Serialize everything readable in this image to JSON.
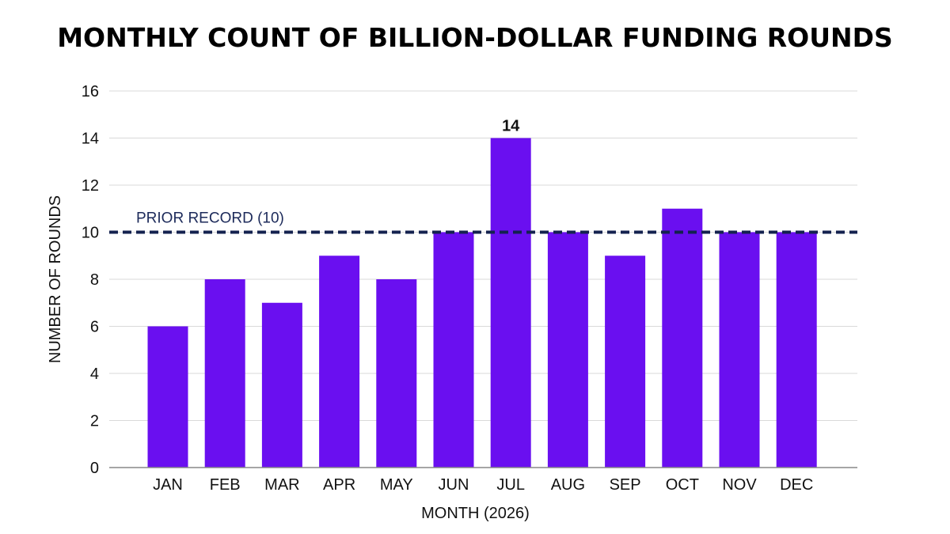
{
  "chart_data": {
    "type": "bar",
    "title": "MONTHLY COUNT OF BILLION-DOLLAR FUNDING ROUNDS",
    "xlabel": "MONTH (2026)",
    "ylabel": "NUMBER OF ROUNDS",
    "categories": [
      "JAN",
      "FEB",
      "MAR",
      "APR",
      "MAY",
      "JUN",
      "JUL",
      "AUG",
      "SEP",
      "OCT",
      "NOV",
      "DEC"
    ],
    "values": [
      6,
      8,
      7,
      9,
      8,
      10,
      14,
      10,
      9,
      11,
      10,
      10
    ],
    "ylim": [
      0,
      16
    ],
    "yticks": [
      0,
      2,
      4,
      6,
      8,
      10,
      12,
      14,
      16
    ],
    "grid": true,
    "bar_color": "#6a0ff0",
    "data_labels": [
      {
        "category": "JUL",
        "text": "14"
      }
    ],
    "reference_line": {
      "value": 10,
      "label": "PRIOR RECORD (10)",
      "color": "#14224f",
      "style": "dashed"
    }
  }
}
